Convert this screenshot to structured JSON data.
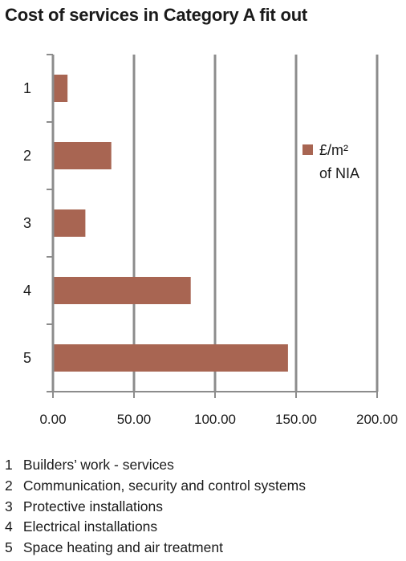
{
  "chart_data": {
    "type": "bar",
    "orientation": "horizontal",
    "title": "Cost of services in Category A fit out",
    "categories": [
      "1",
      "2",
      "3",
      "4",
      "5"
    ],
    "series": [
      {
        "name": "£/m² of NIA",
        "values": [
          9,
          36,
          20,
          85,
          145
        ],
        "color": "#a86552"
      }
    ],
    "x_ticks": [
      "0.00",
      "50.00",
      "100.00",
      "150.00",
      "200.00"
    ],
    "xlim": [
      0,
      200
    ],
    "grid": true,
    "legend_position": "right",
    "legend_lines": [
      "£/m²",
      "of NIA"
    ]
  },
  "notes": [
    {
      "num": "1",
      "text": "Builders’ work - services"
    },
    {
      "num": "2",
      "text": "Communication, security and control systems"
    },
    {
      "num": "3",
      "text": "Protective installations"
    },
    {
      "num": "4",
      "text": "Electrical installations"
    },
    {
      "num": "5",
      "text": "Space heating and air treatment"
    }
  ]
}
